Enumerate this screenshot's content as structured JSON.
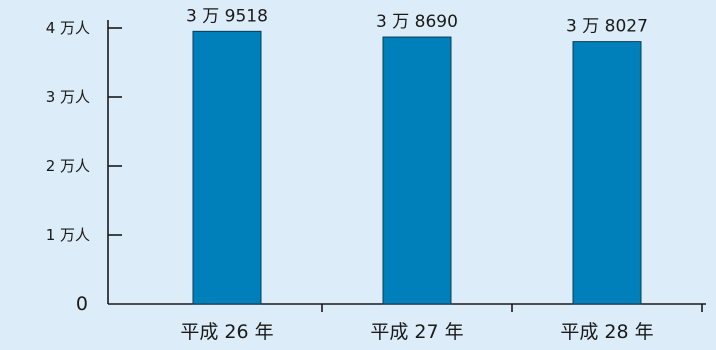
{
  "colors": {
    "background": "#dcedf9",
    "bar": "#0080bb",
    "bar_stroke": "#0b3a56",
    "axis": "#1a1a1a"
  },
  "chart_data": {
    "type": "bar",
    "categories": [
      "平成 26 年",
      "平成 27 年",
      "平成 28 年"
    ],
    "values": [
      39518,
      38690,
      38027
    ],
    "data_labels": [
      "3 万 9518",
      "3 万 8690",
      "3 万 8027"
    ],
    "ylim": [
      0,
      40000
    ],
    "yticks": [
      0,
      10000,
      20000,
      30000,
      40000
    ],
    "ytick_labels": [
      "0",
      "1 万人",
      "2 万人",
      "3 万人",
      "4 万人"
    ],
    "grid": false,
    "legend": "none"
  }
}
